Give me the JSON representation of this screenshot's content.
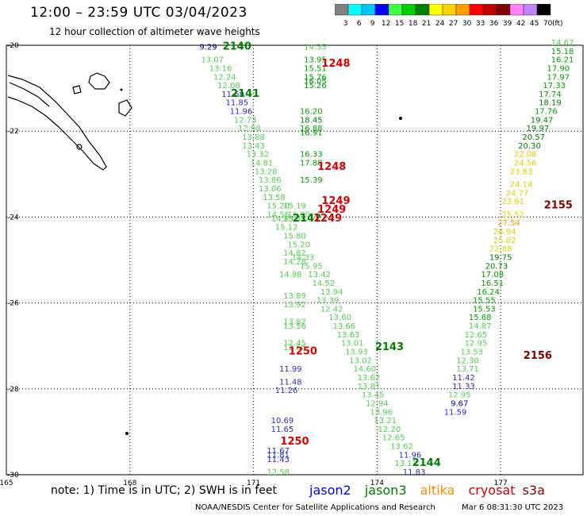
{
  "header": {
    "title": "12:00 – 23:59 UTC 03/04/2023",
    "subtitle": "12 hour collection of altimeter wave heights"
  },
  "colorbar": {
    "labels": [
      "3",
      "6",
      "9",
      "12",
      "15",
      "18",
      "21",
      "24",
      "27",
      "30",
      "33",
      "36",
      "39",
      "42",
      "45",
      "70"
    ],
    "unit": "(ft)",
    "colors": [
      "#808080",
      "#00ffff",
      "#00c8ff",
      "#0000ff",
      "#40ff40",
      "#00d000",
      "#008000",
      "#ffff00",
      "#ffd000",
      "#ffa000",
      "#ff0000",
      "#c00000",
      "#800000",
      "#ff80ff",
      "#c080ff",
      "#000000"
    ]
  },
  "map": {
    "lon_range": [
      165,
      179
    ],
    "lat_range": [
      -30,
      -20
    ],
    "lon_ticks": [
      "165",
      "168",
      "171",
      "174",
      "177"
    ],
    "lat_ticks": [
      "-20",
      "-22",
      "-24",
      "-26",
      "-28",
      "-30"
    ]
  },
  "satellite_colors": {
    "jason2": "#0000ff",
    "jason3": "#008000",
    "altika": "#ff8c00",
    "cryosat": "#cc0000",
    "s3a": "#800000"
  },
  "value_colors": {
    "c6": "#0000b0",
    "c12": "#2a2acc",
    "c15": "#50d050",
    "c18": "#00a000",
    "c21": "#008000",
    "c24": "#e0d000",
    "c27": "#ff9900",
    "orbit_red": "#dd0000",
    "orbit_dark": "#800000"
  },
  "orbit_labels": [
    {
      "text": "2140",
      "lon": 170.6,
      "lat": -20.1,
      "color": "#008000"
    },
    {
      "text": "1248",
      "lon": 173.0,
      "lat": -20.5,
      "color": "#dd0000"
    },
    {
      "text": "2141",
      "lon": 170.8,
      "lat": -21.2,
      "color": "#008000"
    },
    {
      "text": "1248",
      "lon": 172.9,
      "lat": -22.9,
      "color": "#dd0000"
    },
    {
      "text": "1249",
      "lon": 173.0,
      "lat": -23.7,
      "color": "#dd0000"
    },
    {
      "text": "1249",
      "lon": 172.9,
      "lat": -23.9,
      "color": "#dd0000"
    },
    {
      "text": "2142",
      "lon": 172.3,
      "lat": -24.1,
      "color": "#008000"
    },
    {
      "text": "1249",
      "lon": 172.8,
      "lat": -24.1,
      "color": "#dd0000"
    },
    {
      "text": "2155",
      "lon": 178.4,
      "lat": -23.8,
      "color": "#800000"
    },
    {
      "text": "1250",
      "lon": 172.2,
      "lat": -27.2,
      "color": "#dd0000"
    },
    {
      "text": "2143",
      "lon": 174.3,
      "lat": -27.1,
      "color": "#008000"
    },
    {
      "text": "2156",
      "lon": 177.9,
      "lat": -27.3,
      "color": "#800000"
    },
    {
      "text": "1250",
      "lon": 172.0,
      "lat": -29.3,
      "color": "#dd0000"
    },
    {
      "text": "2144",
      "lon": 175.2,
      "lat": -29.8,
      "color": "#008000"
    }
  ],
  "wave_values": [
    {
      "v": "9.29",
      "lon": 169.9,
      "lat": -20.1,
      "c": "c6"
    },
    {
      "v": "13.07",
      "lon": 170.0,
      "lat": -20.4,
      "c": "c15"
    },
    {
      "v": "13.16",
      "lon": 170.2,
      "lat": -20.6,
      "c": "c15"
    },
    {
      "v": "12.24",
      "lon": 170.3,
      "lat": -20.8,
      "c": "c15"
    },
    {
      "v": "12.08",
      "lon": 170.4,
      "lat": -21.0,
      "c": "c15"
    },
    {
      "v": "11.69",
      "lon": 170.5,
      "lat": -21.2,
      "c": "c12"
    },
    {
      "v": "11.85",
      "lon": 170.6,
      "lat": -21.4,
      "c": "c12"
    },
    {
      "v": "11.96",
      "lon": 170.7,
      "lat": -21.6,
      "c": "c12"
    },
    {
      "v": "12.73",
      "lon": 170.8,
      "lat": -21.8,
      "c": "c15"
    },
    {
      "v": "12.98",
      "lon": 170.9,
      "lat": -22.0,
      "c": "c15"
    },
    {
      "v": "13.88",
      "lon": 171.0,
      "lat": -22.2,
      "c": "c15"
    },
    {
      "v": "13.43",
      "lon": 171.0,
      "lat": -22.4,
      "c": "c15"
    },
    {
      "v": "13.32",
      "lon": 171.1,
      "lat": -22.6,
      "c": "c15"
    },
    {
      "v": "14.81",
      "lon": 171.2,
      "lat": -22.8,
      "c": "c15"
    },
    {
      "v": "13.28",
      "lon": 171.3,
      "lat": -23.0,
      "c": "c15"
    },
    {
      "v": "13.86",
      "lon": 171.4,
      "lat": -23.2,
      "c": "c15"
    },
    {
      "v": "13.06",
      "lon": 171.4,
      "lat": -23.4,
      "c": "c15"
    },
    {
      "v": "13.58",
      "lon": 171.5,
      "lat": -23.6,
      "c": "c15"
    },
    {
      "v": "15.20",
      "lon": 171.6,
      "lat": -23.8,
      "c": "c15"
    },
    {
      "v": "15.19",
      "lon": 172.0,
      "lat": -23.8,
      "c": "c15"
    },
    {
      "v": "14.56",
      "lon": 171.6,
      "lat": -24.0,
      "c": "c15"
    },
    {
      "v": "16.00",
      "lon": 172.1,
      "lat": -24.0,
      "c": "c15"
    },
    {
      "v": "14.85",
      "lon": 171.7,
      "lat": -24.1,
      "c": "c15"
    },
    {
      "v": "15.35",
      "lon": 172.0,
      "lat": -24.1,
      "c": "c15"
    },
    {
      "v": "15.12",
      "lon": 171.8,
      "lat": -24.3,
      "c": "c15"
    },
    {
      "v": "15.80",
      "lon": 172.0,
      "lat": -24.5,
      "c": "c15"
    },
    {
      "v": "15.20",
      "lon": 172.1,
      "lat": -24.7,
      "c": "c15"
    },
    {
      "v": "14.82",
      "lon": 172.0,
      "lat": -24.9,
      "c": "c15"
    },
    {
      "v": "14.28",
      "lon": 172.0,
      "lat": -25.1,
      "c": "c15"
    },
    {
      "v": "14.33",
      "lon": 172.2,
      "lat": -25.0,
      "c": "c15"
    },
    {
      "v": "15.95",
      "lon": 172.4,
      "lat": -25.2,
      "c": "c15"
    },
    {
      "v": "13.42",
      "lon": 172.6,
      "lat": -25.4,
      "c": "c15"
    },
    {
      "v": "14.98",
      "lon": 171.9,
      "lat": -25.4,
      "c": "c15"
    },
    {
      "v": "14.52",
      "lon": 172.7,
      "lat": -25.6,
      "c": "c15"
    },
    {
      "v": "13.94",
      "lon": 172.9,
      "lat": -25.8,
      "c": "c15"
    },
    {
      "v": "13.89",
      "lon": 172.0,
      "lat": -25.9,
      "c": "c15"
    },
    {
      "v": "13.39",
      "lon": 172.8,
      "lat": -26.0,
      "c": "c15"
    },
    {
      "v": "13.92",
      "lon": 172.0,
      "lat": -26.1,
      "c": "c15"
    },
    {
      "v": "12.42",
      "lon": 172.9,
      "lat": -26.2,
      "c": "c15"
    },
    {
      "v": "13.60",
      "lon": 173.1,
      "lat": -26.4,
      "c": "c15"
    },
    {
      "v": "13.82",
      "lon": 172.0,
      "lat": -26.5,
      "c": "c15"
    },
    {
      "v": "13.56",
      "lon": 172.0,
      "lat": -26.6,
      "c": "c15"
    },
    {
      "v": "13.66",
      "lon": 173.2,
      "lat": -26.6,
      "c": "c15"
    },
    {
      "v": "13.63",
      "lon": 173.3,
      "lat": -26.8,
      "c": "c15"
    },
    {
      "v": "12.45",
      "lon": 172.0,
      "lat": -27.0,
      "c": "c15"
    },
    {
      "v": "13.01",
      "lon": 173.4,
      "lat": -27.0,
      "c": "c15"
    },
    {
      "v": "12.66",
      "lon": 172.0,
      "lat": -27.1,
      "c": "c15"
    },
    {
      "v": "13.93",
      "lon": 173.5,
      "lat": -27.2,
      "c": "c15"
    },
    {
      "v": "13.02",
      "lon": 173.6,
      "lat": -27.4,
      "c": "c15"
    },
    {
      "v": "11.99",
      "lon": 171.9,
      "lat": -27.6,
      "c": "c12"
    },
    {
      "v": "14.60",
      "lon": 173.7,
      "lat": -27.6,
      "c": "c15"
    },
    {
      "v": "13.62",
      "lon": 173.8,
      "lat": -27.8,
      "c": "c15"
    },
    {
      "v": "11.48",
      "lon": 171.9,
      "lat": -27.9,
      "c": "c12"
    },
    {
      "v": "13.81",
      "lon": 173.8,
      "lat": -28.0,
      "c": "c15"
    },
    {
      "v": "11.26",
      "lon": 171.8,
      "lat": -28.1,
      "c": "c12"
    },
    {
      "v": "13.45",
      "lon": 173.9,
      "lat": -28.2,
      "c": "c15"
    },
    {
      "v": "12.94",
      "lon": 174.0,
      "lat": -28.4,
      "c": "c15"
    },
    {
      "v": "13.96",
      "lon": 174.1,
      "lat": -28.6,
      "c": "c15"
    },
    {
      "v": "13.21",
      "lon": 174.2,
      "lat": -28.8,
      "c": "c15"
    },
    {
      "v": "10.69",
      "lon": 171.7,
      "lat": -28.8,
      "c": "c12"
    },
    {
      "v": "11.65",
      "lon": 171.7,
      "lat": -29.0,
      "c": "c12"
    },
    {
      "v": "12.20",
      "lon": 174.3,
      "lat": -29.0,
      "c": "c15"
    },
    {
      "v": "12.65",
      "lon": 174.4,
      "lat": -29.2,
      "c": "c15"
    },
    {
      "v": "13.62",
      "lon": 174.6,
      "lat": -29.4,
      "c": "c15"
    },
    {
      "v": "11.67",
      "lon": 171.6,
      "lat": -29.5,
      "c": "c12"
    },
    {
      "v": "11.96",
      "lon": 174.8,
      "lat": -29.6,
      "c": "c12"
    },
    {
      "v": "11.81",
      "lon": 171.6,
      "lat": -29.6,
      "c": "c12"
    },
    {
      "v": "11.43",
      "lon": 171.6,
      "lat": -29.7,
      "c": "c12"
    },
    {
      "v": "13.13",
      "lon": 174.7,
      "lat": -29.8,
      "c": "c15"
    },
    {
      "v": "12.58",
      "lon": 171.6,
      "lat": -30.0,
      "c": "c15"
    },
    {
      "v": "11.83",
      "lon": 174.9,
      "lat": -30.0,
      "c": "c12"
    },
    {
      "v": "14.35",
      "lon": 172.5,
      "lat": -20.1,
      "c": "c15"
    },
    {
      "v": "13.95",
      "lon": 172.5,
      "lat": -20.4,
      "c": "c18"
    },
    {
      "v": "15.51",
      "lon": 172.5,
      "lat": -20.6,
      "c": "c18"
    },
    {
      "v": "15.76",
      "lon": 172.5,
      "lat": -20.8,
      "c": "c18"
    },
    {
      "v": "16.05",
      "lon": 172.5,
      "lat": -20.9,
      "c": "c18"
    },
    {
      "v": "15.26",
      "lon": 172.5,
      "lat": -21.0,
      "c": "c18"
    },
    {
      "v": "16.20",
      "lon": 172.4,
      "lat": -21.6,
      "c": "c18"
    },
    {
      "v": "18.45",
      "lon": 172.4,
      "lat": -21.8,
      "c": "c21"
    },
    {
      "v": "16.88",
      "lon": 172.4,
      "lat": -22.0,
      "c": "c18"
    },
    {
      "v": "16.91",
      "lon": 172.4,
      "lat": -22.1,
      "c": "c18"
    },
    {
      "v": "16.33",
      "lon": 172.4,
      "lat": -22.6,
      "c": "c18"
    },
    {
      "v": "17.88",
      "lon": 172.4,
      "lat": -22.8,
      "c": "c18"
    },
    {
      "v": "15.39",
      "lon": 172.4,
      "lat": -23.2,
      "c": "c18"
    },
    {
      "v": "14.67",
      "lon": 178.5,
      "lat": -20.0,
      "c": "c15"
    },
    {
      "v": "15.18",
      "lon": 178.5,
      "lat": -20.2,
      "c": "c18"
    },
    {
      "v": "16.21",
      "lon": 178.5,
      "lat": -20.4,
      "c": "c18"
    },
    {
      "v": "17.90",
      "lon": 178.4,
      "lat": -20.6,
      "c": "c18"
    },
    {
      "v": "17.97",
      "lon": 178.4,
      "lat": -20.8,
      "c": "c18"
    },
    {
      "v": "17.33",
      "lon": 178.3,
      "lat": -21.0,
      "c": "c18"
    },
    {
      "v": "17.74",
      "lon": 178.2,
      "lat": -21.2,
      "c": "c18"
    },
    {
      "v": "18.19",
      "lon": 178.2,
      "lat": -21.4,
      "c": "c21"
    },
    {
      "v": "17.76",
      "lon": 178.1,
      "lat": -21.6,
      "c": "c18"
    },
    {
      "v": "19.47",
      "lon": 178.0,
      "lat": -21.8,
      "c": "c21"
    },
    {
      "v": "19.97",
      "lon": 177.9,
      "lat": -22.0,
      "c": "c21"
    },
    {
      "v": "20.57",
      "lon": 177.8,
      "lat": -22.2,
      "c": "c21"
    },
    {
      "v": "20.30",
      "lon": 177.7,
      "lat": -22.4,
      "c": "c21"
    },
    {
      "v": "22.08",
      "lon": 177.6,
      "lat": -22.6,
      "c": "c24"
    },
    {
      "v": "24.56",
      "lon": 177.6,
      "lat": -22.8,
      "c": "c24"
    },
    {
      "v": "23.83",
      "lon": 177.5,
      "lat": -23.0,
      "c": "c24"
    },
    {
      "v": "24.14",
      "lon": 177.5,
      "lat": -23.3,
      "c": "c24"
    },
    {
      "v": "24.77",
      "lon": 177.4,
      "lat": -23.5,
      "c": "c24"
    },
    {
      "v": "23.81",
      "lon": 177.3,
      "lat": -23.7,
      "c": "c24"
    },
    {
      "v": "25.52",
      "lon": 177.3,
      "lat": -24.0,
      "c": "c24"
    },
    {
      "v": "27.54",
      "lon": 177.2,
      "lat": -24.2,
      "c": "c27"
    },
    {
      "v": "26.94",
      "lon": 177.1,
      "lat": -24.4,
      "c": "c24"
    },
    {
      "v": "25.02",
      "lon": 177.1,
      "lat": -24.6,
      "c": "c24"
    },
    {
      "v": "22.88",
      "lon": 177.0,
      "lat": -24.8,
      "c": "c24"
    },
    {
      "v": "19.75",
      "lon": 177.0,
      "lat": -25.0,
      "c": "c21"
    },
    {
      "v": "20.73",
      "lon": 176.9,
      "lat": -25.2,
      "c": "c21"
    },
    {
      "v": "17.08",
      "lon": 176.8,
      "lat": -25.4,
      "c": "c18"
    },
    {
      "v": "16.51",
      "lon": 176.8,
      "lat": -25.6,
      "c": "c18"
    },
    {
      "v": "16.24",
      "lon": 176.7,
      "lat": -25.8,
      "c": "c18"
    },
    {
      "v": "15.55",
      "lon": 176.6,
      "lat": -26.0,
      "c": "c18"
    },
    {
      "v": "15.53",
      "lon": 176.6,
      "lat": -26.2,
      "c": "c18"
    },
    {
      "v": "15.68",
      "lon": 176.5,
      "lat": -26.4,
      "c": "c18"
    },
    {
      "v": "14.87",
      "lon": 176.5,
      "lat": -26.6,
      "c": "c15"
    },
    {
      "v": "12.65",
      "lon": 176.4,
      "lat": -26.8,
      "c": "c15"
    },
    {
      "v": "12.95",
      "lon": 176.4,
      "lat": -27.0,
      "c": "c15"
    },
    {
      "v": "13.53",
      "lon": 176.3,
      "lat": -27.2,
      "c": "c15"
    },
    {
      "v": "12.30",
      "lon": 176.2,
      "lat": -27.4,
      "c": "c15"
    },
    {
      "v": "13.71",
      "lon": 176.2,
      "lat": -27.6,
      "c": "c15"
    },
    {
      "v": "11.42",
      "lon": 176.1,
      "lat": -27.8,
      "c": "c12"
    },
    {
      "v": "11.33",
      "lon": 176.1,
      "lat": -28.0,
      "c": "c12"
    },
    {
      "v": "12.95",
      "lon": 176.0,
      "lat": -28.2,
      "c": "c15"
    },
    {
      "v": "9.67",
      "lon": 176.0,
      "lat": -28.4,
      "c": "c6"
    },
    {
      "v": "11.59",
      "lon": 175.9,
      "lat": -28.6,
      "c": "c12"
    }
  ],
  "footer": {
    "note": "note:  1) Time is in UTC;  2) SWH is in feet",
    "satellites": [
      "jason2",
      "jason3",
      "altika",
      "cryosat",
      "s3a"
    ],
    "credit": "NOAA/NESDIS Center for Satellite Applications and Research",
    "timestamp": "Mar  6 08:31:30 UTC 2023"
  }
}
